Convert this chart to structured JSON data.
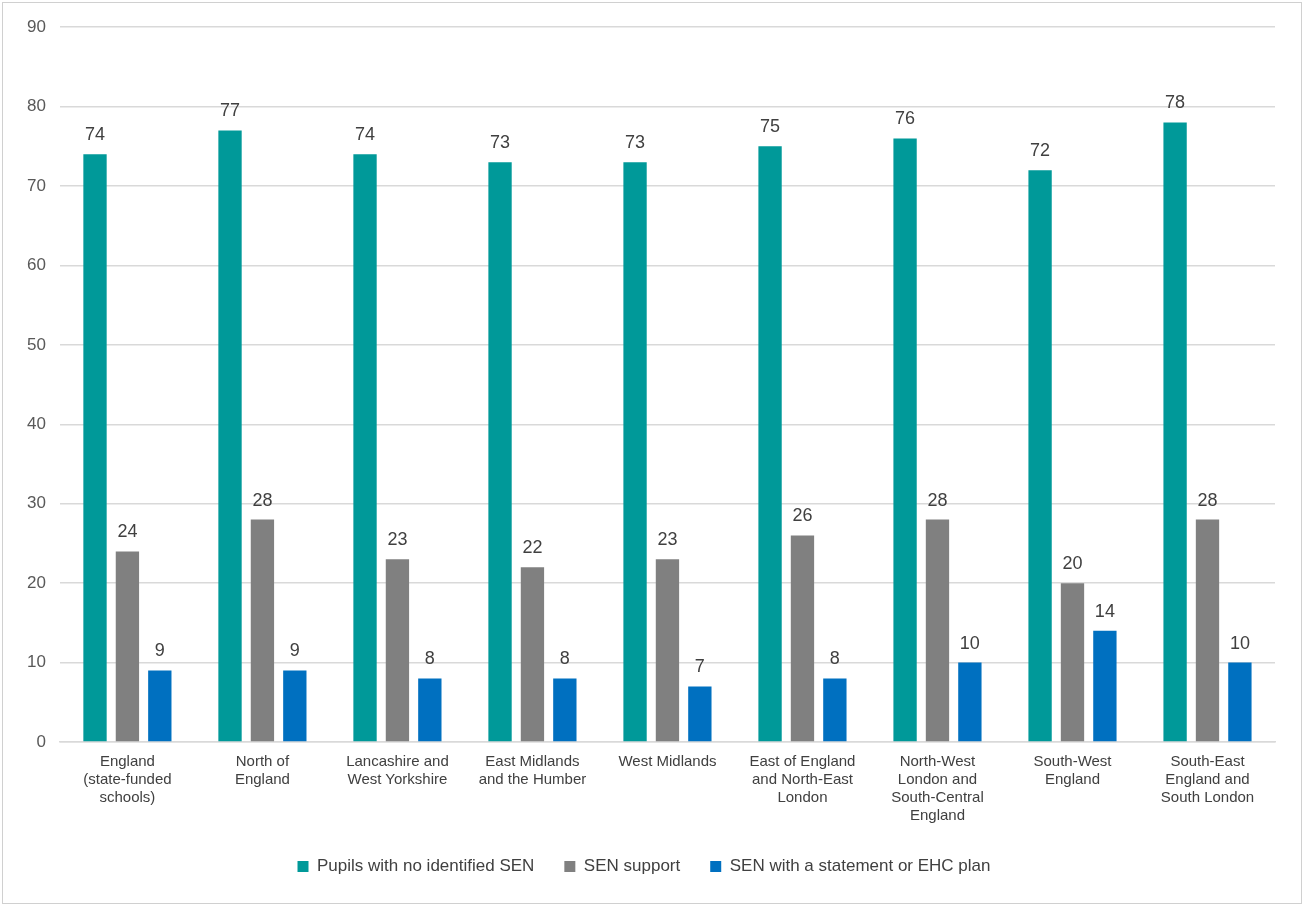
{
  "chart_data": {
    "type": "bar",
    "categories": [
      "England (state-funded schools)",
      "North of England",
      "Lancashire and West Yorkshire",
      "East Midlands and the Humber",
      "West Midlands",
      "East of England and North-East London",
      "North-West London and South-Central England",
      "South-West England",
      "South-East England and South London"
    ],
    "series": [
      {
        "name": "Pupils with no identified SEN",
        "color": "#009999",
        "values": [
          74,
          77,
          74,
          73,
          73,
          75,
          76,
          72,
          78
        ]
      },
      {
        "name": "SEN support",
        "color": "#808080",
        "values": [
          24,
          28,
          23,
          22,
          23,
          26,
          28,
          20,
          28
        ]
      },
      {
        "name": "SEN with a statement or EHC plan",
        "color": "#0070c0",
        "values": [
          9,
          9,
          8,
          8,
          7,
          8,
          10,
          14,
          10
        ]
      }
    ],
    "ylim": [
      0,
      90
    ],
    "yticks": [
      0,
      10,
      20,
      30,
      40,
      50,
      60,
      70,
      80,
      90
    ],
    "grid": "y",
    "legend": "bottom",
    "data_labels": true
  }
}
